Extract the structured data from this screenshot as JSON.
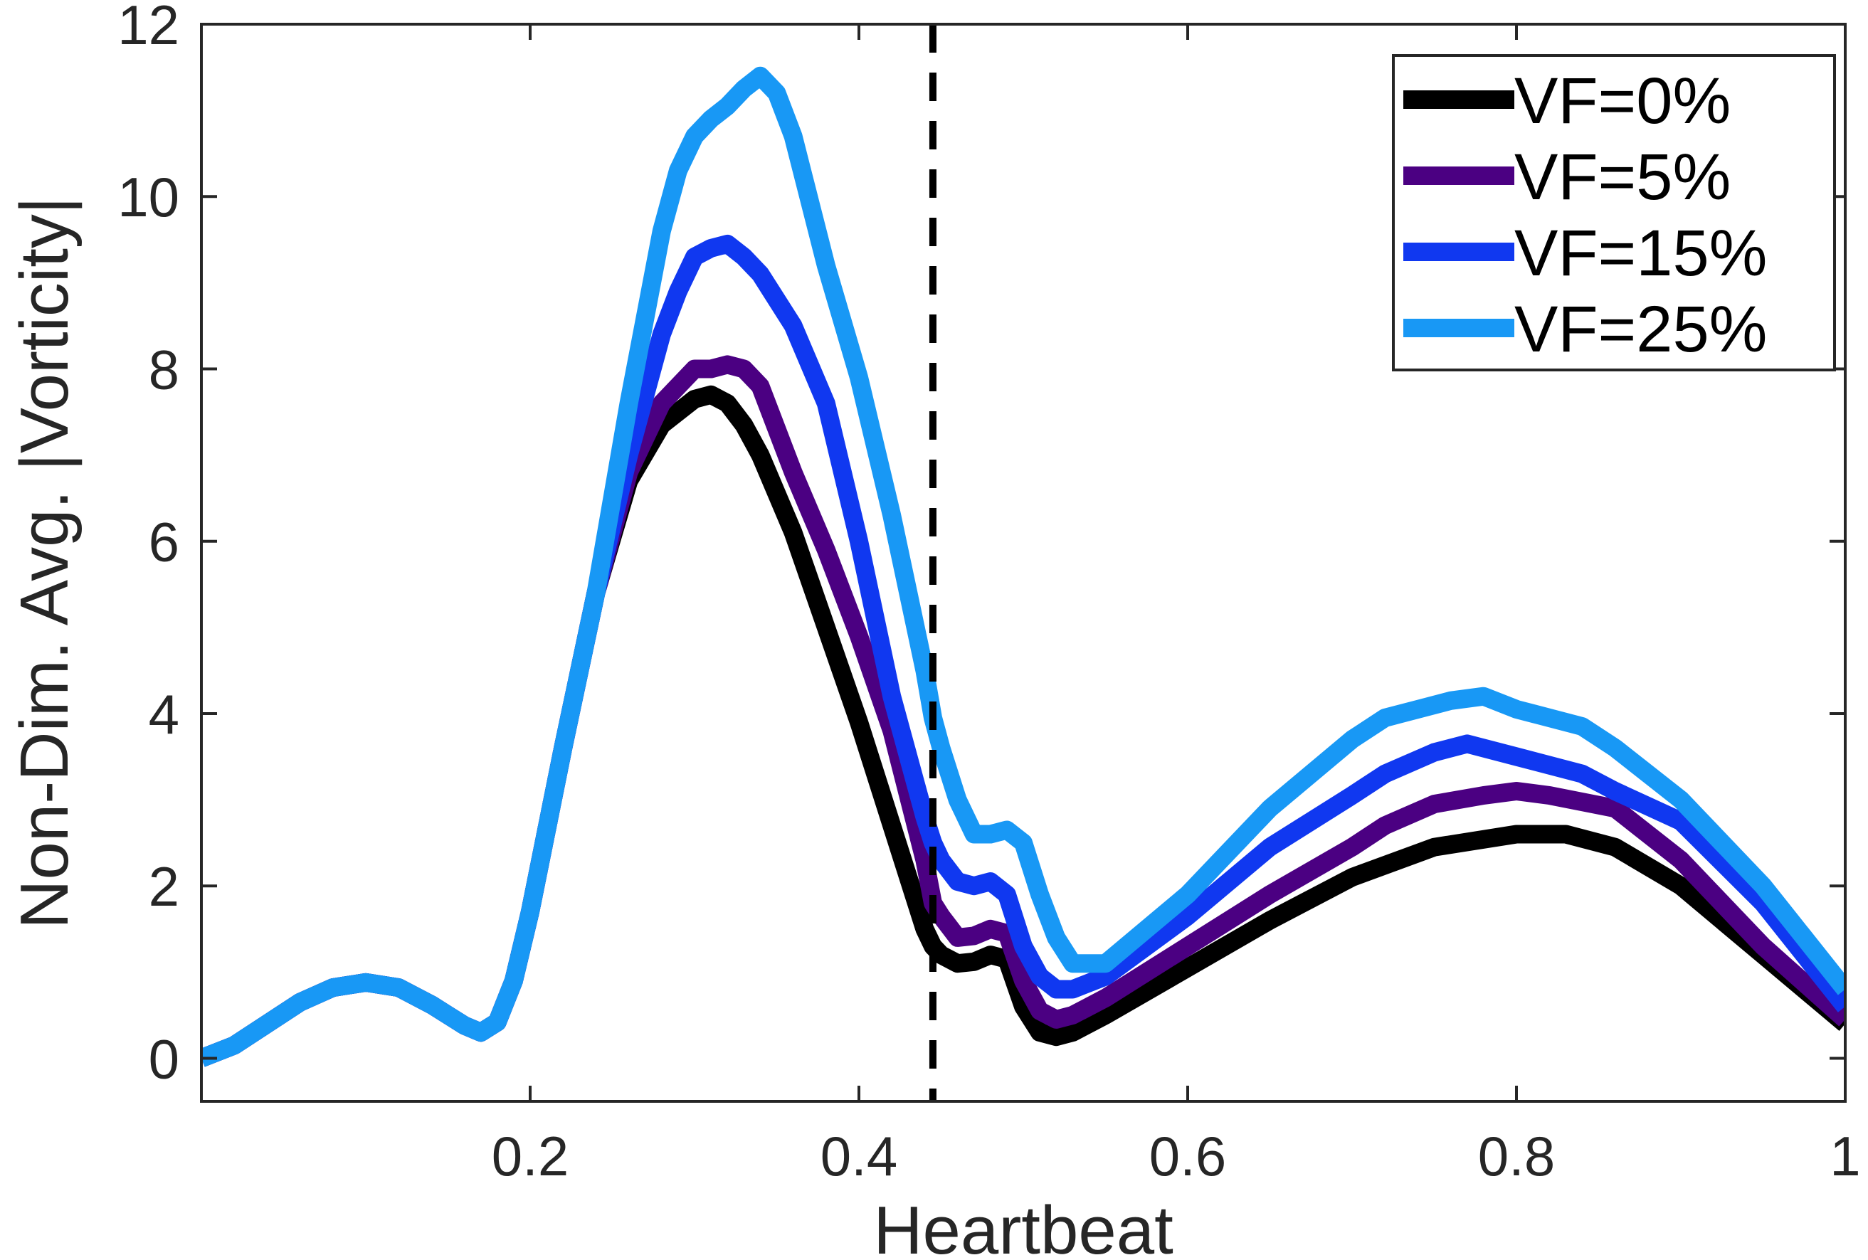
{
  "chart_data": {
    "type": "line",
    "title": "",
    "xlabel": "Heartbeat",
    "ylabel": "Non-Dim. Avg. |Vorticity|",
    "xlim": [
      0,
      1
    ],
    "ylim": [
      -0.5,
      12
    ],
    "xticks": [
      0.2,
      0.4,
      0.6,
      0.8,
      1
    ],
    "xtick_labels": [
      "0.2",
      "0.4",
      "0.6",
      "0.8",
      "1"
    ],
    "yticks": [
      0,
      2,
      4,
      6,
      8,
      10,
      12
    ],
    "ytick_labels": [
      "0",
      "2",
      "4",
      "6",
      "8",
      "10",
      "12"
    ],
    "grid": false,
    "legend_position": "top-right",
    "vline": {
      "x": 0.445,
      "style": "dashed",
      "color": "#000000"
    },
    "series": [
      {
        "name": "VF=0%",
        "color": "#000000",
        "x": [
          0.0,
          0.02,
          0.04,
          0.06,
          0.08,
          0.1,
          0.12,
          0.14,
          0.16,
          0.17,
          0.18,
          0.19,
          0.2,
          0.22,
          0.24,
          0.26,
          0.28,
          0.3,
          0.31,
          0.32,
          0.33,
          0.34,
          0.36,
          0.38,
          0.4,
          0.42,
          0.44,
          0.445,
          0.45,
          0.46,
          0.47,
          0.48,
          0.49,
          0.5,
          0.51,
          0.52,
          0.53,
          0.55,
          0.6,
          0.65,
          0.7,
          0.75,
          0.8,
          0.83,
          0.86,
          0.9,
          0.95,
          1.0
        ],
        "values": [
          0.0,
          0.15,
          0.4,
          0.65,
          0.82,
          0.88,
          0.82,
          0.62,
          0.38,
          0.3,
          0.42,
          0.9,
          1.7,
          3.6,
          5.4,
          6.7,
          7.35,
          7.65,
          7.7,
          7.6,
          7.35,
          7.0,
          6.1,
          5.0,
          3.9,
          2.7,
          1.5,
          1.3,
          1.2,
          1.1,
          1.12,
          1.2,
          1.15,
          0.6,
          0.3,
          0.25,
          0.3,
          0.5,
          1.05,
          1.6,
          2.1,
          2.45,
          2.6,
          2.6,
          2.45,
          2.0,
          1.2,
          0.4
        ]
      },
      {
        "name": "VF=5%",
        "color": "#4b0082",
        "x": [
          0.0,
          0.02,
          0.04,
          0.06,
          0.08,
          0.1,
          0.12,
          0.14,
          0.16,
          0.17,
          0.18,
          0.19,
          0.2,
          0.22,
          0.24,
          0.26,
          0.28,
          0.3,
          0.31,
          0.32,
          0.33,
          0.34,
          0.36,
          0.38,
          0.4,
          0.42,
          0.44,
          0.445,
          0.45,
          0.46,
          0.47,
          0.48,
          0.49,
          0.5,
          0.51,
          0.52,
          0.53,
          0.55,
          0.6,
          0.65,
          0.7,
          0.72,
          0.75,
          0.78,
          0.8,
          0.82,
          0.86,
          0.9,
          0.95,
          1.0
        ],
        "values": [
          0.0,
          0.15,
          0.4,
          0.65,
          0.82,
          0.88,
          0.82,
          0.62,
          0.38,
          0.3,
          0.42,
          0.9,
          1.7,
          3.6,
          5.4,
          6.8,
          7.6,
          8.0,
          8.0,
          8.05,
          8.0,
          7.8,
          6.8,
          5.9,
          4.9,
          3.8,
          2.3,
          1.8,
          1.65,
          1.4,
          1.42,
          1.5,
          1.45,
          0.9,
          0.55,
          0.45,
          0.5,
          0.7,
          1.3,
          1.9,
          2.45,
          2.7,
          2.95,
          3.05,
          3.1,
          3.05,
          2.9,
          2.3,
          1.3,
          0.45
        ]
      },
      {
        "name": "VF=15%",
        "color": "#1038f0",
        "x": [
          0.0,
          0.02,
          0.04,
          0.06,
          0.08,
          0.1,
          0.12,
          0.14,
          0.16,
          0.17,
          0.18,
          0.19,
          0.2,
          0.22,
          0.24,
          0.26,
          0.28,
          0.29,
          0.3,
          0.31,
          0.32,
          0.33,
          0.34,
          0.36,
          0.38,
          0.4,
          0.42,
          0.44,
          0.445,
          0.45,
          0.46,
          0.47,
          0.48,
          0.49,
          0.5,
          0.51,
          0.52,
          0.53,
          0.55,
          0.6,
          0.65,
          0.7,
          0.72,
          0.75,
          0.77,
          0.8,
          0.84,
          0.86,
          0.9,
          0.95,
          1.0
        ],
        "values": [
          0.0,
          0.15,
          0.4,
          0.65,
          0.82,
          0.88,
          0.82,
          0.62,
          0.38,
          0.3,
          0.42,
          0.9,
          1.7,
          3.6,
          5.4,
          7.0,
          8.4,
          8.9,
          9.3,
          9.4,
          9.45,
          9.3,
          9.1,
          8.5,
          7.6,
          6.0,
          4.2,
          2.8,
          2.5,
          2.3,
          2.05,
          2.0,
          2.05,
          1.9,
          1.3,
          0.95,
          0.8,
          0.8,
          0.95,
          1.65,
          2.45,
          3.05,
          3.3,
          3.55,
          3.65,
          3.5,
          3.3,
          3.1,
          2.75,
          1.8,
          0.6
        ]
      },
      {
        "name": "VF=25%",
        "color": "#1898f5",
        "x": [
          0.0,
          0.02,
          0.04,
          0.06,
          0.08,
          0.1,
          0.12,
          0.14,
          0.16,
          0.17,
          0.18,
          0.19,
          0.2,
          0.22,
          0.24,
          0.26,
          0.27,
          0.28,
          0.29,
          0.3,
          0.31,
          0.32,
          0.33,
          0.34,
          0.35,
          0.36,
          0.38,
          0.4,
          0.42,
          0.44,
          0.445,
          0.45,
          0.46,
          0.47,
          0.48,
          0.49,
          0.5,
          0.51,
          0.52,
          0.53,
          0.55,
          0.6,
          0.65,
          0.7,
          0.72,
          0.74,
          0.76,
          0.78,
          0.8,
          0.84,
          0.86,
          0.9,
          0.95,
          1.0
        ],
        "values": [
          0.0,
          0.15,
          0.4,
          0.65,
          0.82,
          0.88,
          0.82,
          0.62,
          0.38,
          0.3,
          0.42,
          0.9,
          1.7,
          3.6,
          5.4,
          7.6,
          8.6,
          9.6,
          10.3,
          10.7,
          10.9,
          11.05,
          11.25,
          11.4,
          11.2,
          10.7,
          9.2,
          7.9,
          6.3,
          4.5,
          3.95,
          3.6,
          3.0,
          2.6,
          2.6,
          2.65,
          2.5,
          1.9,
          1.4,
          1.1,
          1.1,
          1.9,
          2.9,
          3.7,
          3.95,
          4.05,
          4.15,
          4.2,
          4.05,
          3.85,
          3.6,
          3.0,
          2.0,
          0.8
        ]
      }
    ]
  }
}
